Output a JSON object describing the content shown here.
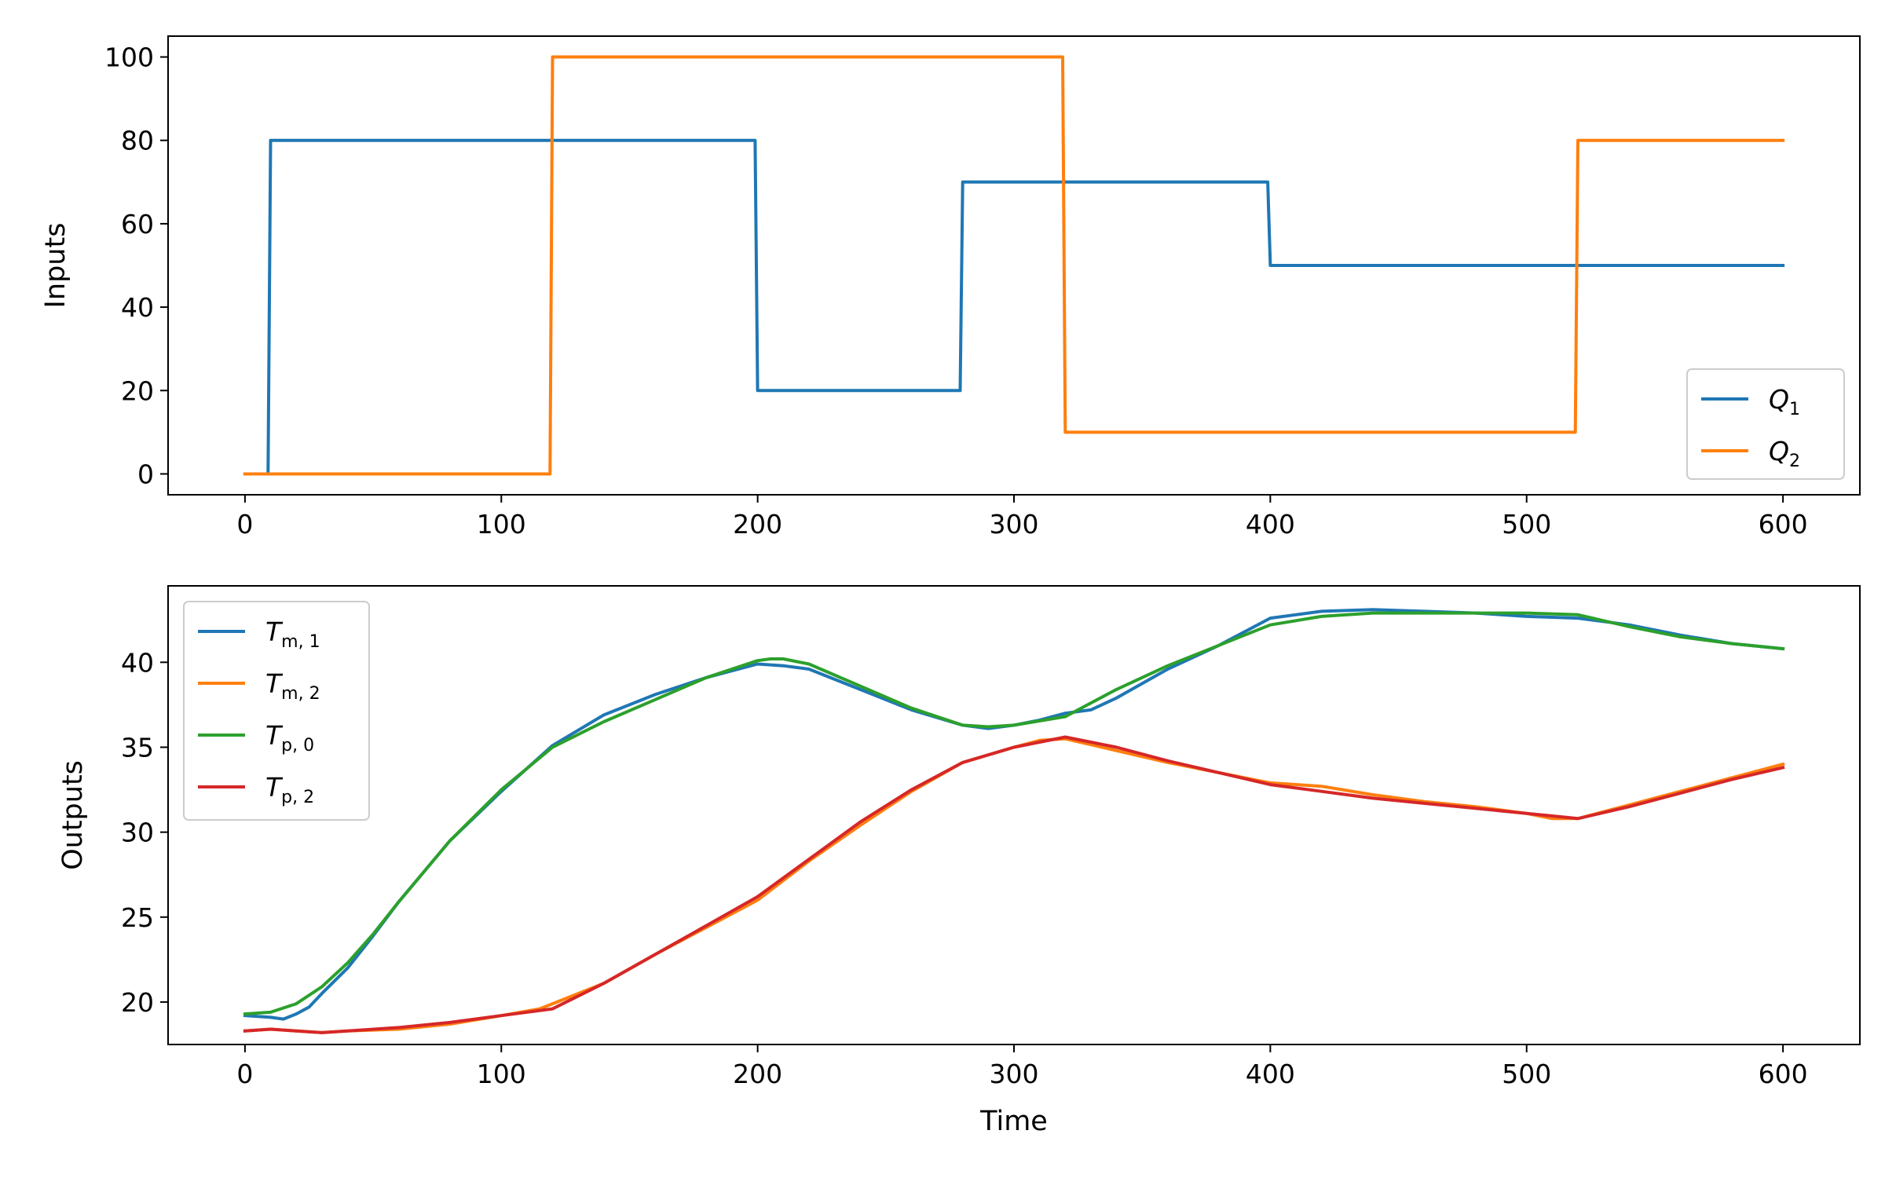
{
  "chart_data": [
    {
      "type": "line",
      "title": "",
      "xlabel": "",
      "ylabel": "Inputs",
      "xlim": [
        -30,
        630
      ],
      "ylim": [
        -5,
        105
      ],
      "xticks": [
        0,
        100,
        200,
        300,
        400,
        500,
        600
      ],
      "yticks": [
        0,
        20,
        40,
        60,
        80,
        100
      ],
      "grid": false,
      "legend_position": "bottom-right",
      "series": [
        {
          "name": "Q1",
          "label_main": "Q",
          "label_sub": "1",
          "color": "#1f77b4",
          "x": [
            0,
            9,
            10,
            199,
            200,
            279,
            280,
            399,
            400,
            600
          ],
          "y": [
            0,
            0,
            80,
            80,
            20,
            20,
            70,
            70,
            50,
            50
          ]
        },
        {
          "name": "Q2",
          "label_main": "Q",
          "label_sub": "2",
          "color": "#ff7f0e",
          "x": [
            0,
            119,
            120,
            319,
            320,
            519,
            520,
            600
          ],
          "y": [
            0,
            0,
            100,
            100,
            10,
            10,
            80,
            80
          ]
        }
      ]
    },
    {
      "type": "line",
      "title": "",
      "xlabel": "Time",
      "ylabel": "Outputs",
      "xlim": [
        -30,
        630
      ],
      "ylim": [
        17.5,
        44.5
      ],
      "xticks": [
        0,
        100,
        200,
        300,
        400,
        500,
        600
      ],
      "yticks": [
        20,
        25,
        30,
        35,
        40
      ],
      "grid": false,
      "legend_position": "top-left",
      "series": [
        {
          "name": "Tm,1",
          "label_main": "T",
          "label_sub": "m, 1",
          "color": "#1f77b4",
          "x": [
            0,
            10,
            15,
            20,
            25,
            30,
            40,
            50,
            60,
            80,
            100,
            120,
            140,
            160,
            180,
            200,
            210,
            220,
            240,
            260,
            280,
            290,
            300,
            310,
            320,
            330,
            340,
            360,
            380,
            400,
            420,
            440,
            460,
            480,
            500,
            520,
            540,
            560,
            580,
            600
          ],
          "y": [
            19.2,
            19.1,
            19.0,
            19.3,
            19.7,
            20.5,
            22.0,
            23.9,
            25.9,
            29.5,
            32.4,
            35.1,
            36.9,
            38.1,
            39.1,
            39.9,
            39.8,
            39.6,
            38.4,
            37.2,
            36.3,
            36.1,
            36.3,
            36.6,
            37.0,
            37.2,
            37.9,
            39.6,
            41.0,
            42.6,
            43.0,
            43.1,
            43.0,
            42.9,
            42.7,
            42.6,
            42.2,
            41.6,
            41.1,
            40.8
          ]
        },
        {
          "name": "Tm,2",
          "label_main": "T",
          "label_sub": "m, 2",
          "color": "#ff7f0e",
          "x": [
            0,
            10,
            20,
            30,
            40,
            60,
            80,
            100,
            115,
            120,
            125,
            140,
            160,
            180,
            200,
            220,
            240,
            260,
            280,
            300,
            310,
            320,
            340,
            360,
            380,
            400,
            420,
            440,
            460,
            480,
            500,
            510,
            520,
            540,
            560,
            580,
            600
          ],
          "y": [
            18.3,
            18.4,
            18.3,
            18.2,
            18.3,
            18.4,
            18.7,
            19.2,
            19.6,
            19.9,
            20.2,
            21.1,
            22.8,
            24.4,
            26.0,
            28.3,
            30.4,
            32.4,
            34.1,
            35.0,
            35.4,
            35.5,
            34.8,
            34.1,
            33.5,
            32.9,
            32.7,
            32.2,
            31.8,
            31.5,
            31.1,
            30.8,
            30.8,
            31.6,
            32.4,
            33.2,
            34.0
          ]
        },
        {
          "name": "Tp,0",
          "label_main": "T",
          "label_sub": "p, 0",
          "color": "#2ca02c",
          "x": [
            0,
            10,
            20,
            30,
            40,
            50,
            60,
            80,
            100,
            120,
            140,
            160,
            180,
            200,
            205,
            210,
            220,
            240,
            260,
            280,
            290,
            300,
            320,
            340,
            360,
            380,
            400,
            420,
            440,
            460,
            480,
            500,
            520,
            540,
            560,
            580,
            600
          ],
          "y": [
            19.3,
            19.4,
            19.9,
            20.9,
            22.3,
            24.0,
            25.9,
            29.5,
            32.5,
            35.0,
            36.5,
            37.8,
            39.1,
            40.1,
            40.2,
            40.2,
            39.9,
            38.6,
            37.3,
            36.3,
            36.2,
            36.3,
            36.8,
            38.4,
            39.8,
            41.0,
            42.2,
            42.7,
            42.9,
            42.9,
            42.9,
            42.9,
            42.8,
            42.1,
            41.5,
            41.1,
            40.8
          ]
        },
        {
          "name": "Tp,2",
          "label_main": "T",
          "label_sub": "p, 2",
          "color": "#d62728",
          "x": [
            0,
            10,
            20,
            30,
            40,
            60,
            80,
            100,
            120,
            140,
            160,
            180,
            200,
            220,
            240,
            260,
            280,
            300,
            320,
            340,
            360,
            380,
            400,
            420,
            440,
            460,
            480,
            500,
            520,
            540,
            560,
            580,
            600
          ],
          "y": [
            18.3,
            18.4,
            18.3,
            18.2,
            18.3,
            18.5,
            18.8,
            19.2,
            19.6,
            21.1,
            22.8,
            24.5,
            26.2,
            28.4,
            30.6,
            32.5,
            34.1,
            35.0,
            35.6,
            35.0,
            34.2,
            33.5,
            32.8,
            32.4,
            32.0,
            31.7,
            31.4,
            31.1,
            30.8,
            31.5,
            32.3,
            33.1,
            33.8
          ]
        }
      ]
    }
  ]
}
